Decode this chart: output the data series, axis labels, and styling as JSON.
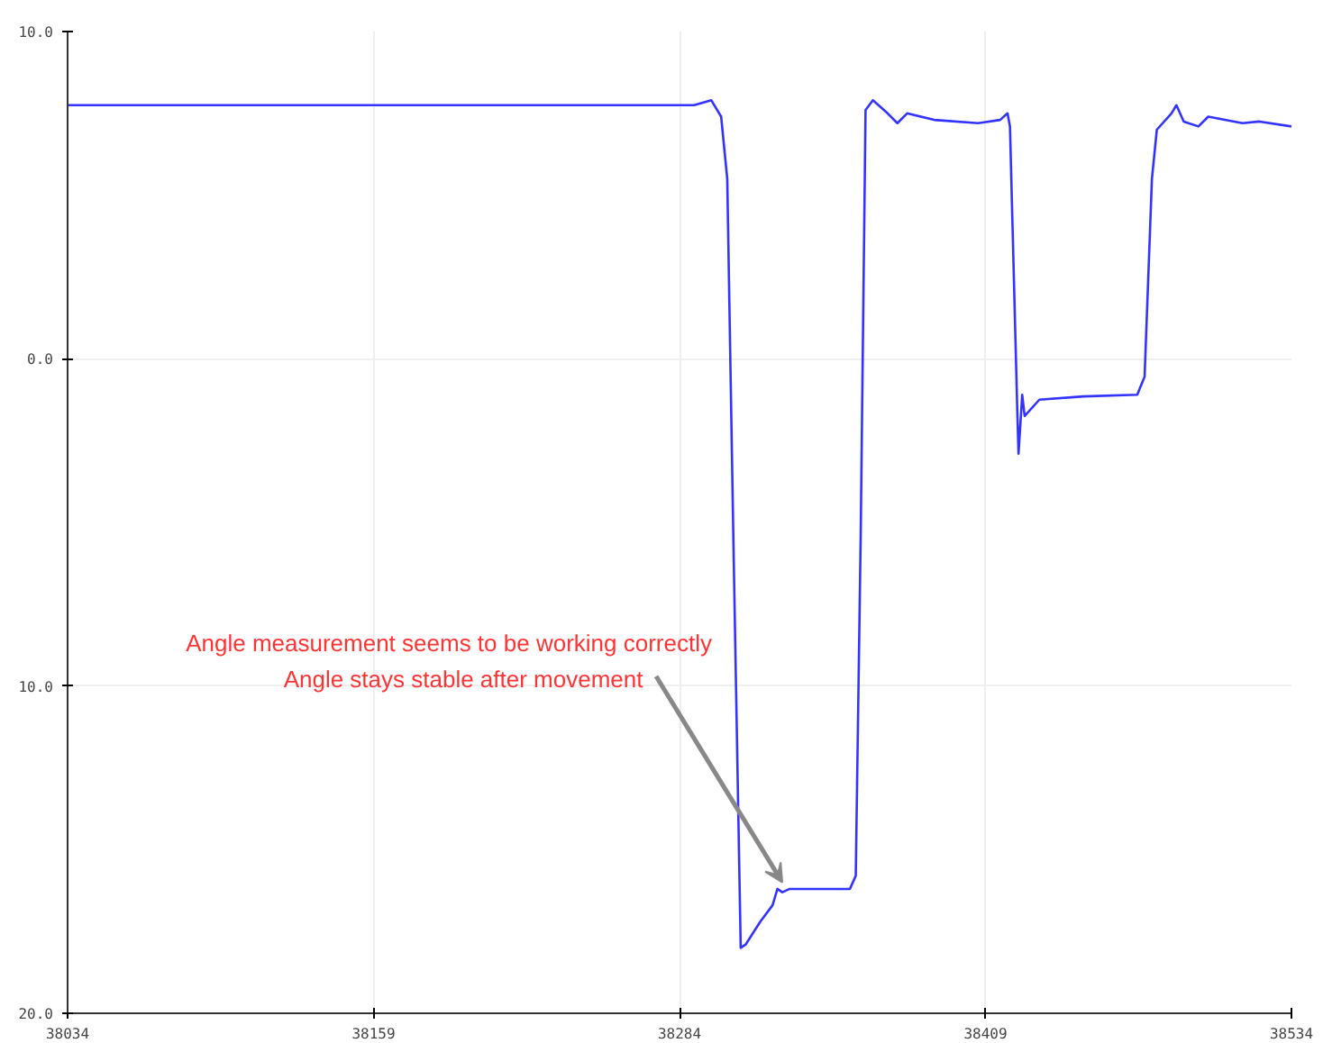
{
  "chart_data": {
    "type": "line",
    "x": [
      38034,
      38224.6,
      38290,
      38297,
      38301,
      38303.5,
      38306,
      38309,
      38311,
      38317,
      38322,
      38324,
      38326,
      38329,
      38353.6,
      38356,
      38358,
      38360,
      38363,
      38369,
      38373,
      38377,
      38388,
      38406,
      38415,
      38418,
      38419,
      38422,
      38422.5,
      38424,
      38425,
      38431,
      38449,
      38471,
      38474,
      38477,
      38479,
      38485,
      38487,
      38490,
      38496,
      38500,
      38514,
      38521,
      38534
    ],
    "series": [
      {
        "color": "#3333ff",
        "values": [
          7.75,
          7.75,
          7.75,
          7.9,
          7.4,
          5.5,
          -5.5,
          -18.0,
          -17.9,
          -17.2,
          -16.7,
          -16.2,
          -16.3,
          -16.2,
          -16.2,
          -15.8,
          -5.5,
          7.6,
          7.9,
          7.5,
          7.2,
          7.5,
          7.3,
          7.2,
          7.3,
          7.5,
          7.1,
          -1.6,
          -2.9,
          -1.1,
          -1.75,
          -1.25,
          -1.15,
          -1.1,
          -0.55,
          5.5,
          7.0,
          7.5,
          7.75,
          7.25,
          7.1,
          7.4,
          7.2,
          7.25,
          7.1
        ]
      }
    ],
    "xlim": [
      38034,
      38534
    ],
    "xticks": [
      38034,
      38159,
      38284,
      38409,
      38534
    ],
    "ylim": [
      -20,
      10
    ],
    "yticks": [
      {
        "value": -20,
        "label": "20.0"
      },
      {
        "value": -10,
        "label": "10.0"
      },
      {
        "value": 0,
        "label": "0.0"
      },
      {
        "value": 10,
        "label": "10.0"
      }
    ],
    "grid": true,
    "line_style": "solid",
    "annotations": [
      {
        "text": "Angle measurement seems to be working correctly"
      },
      {
        "text": "Angle stays stable after movement",
        "x": 38326,
        "y": -16.0
      }
    ]
  }
}
